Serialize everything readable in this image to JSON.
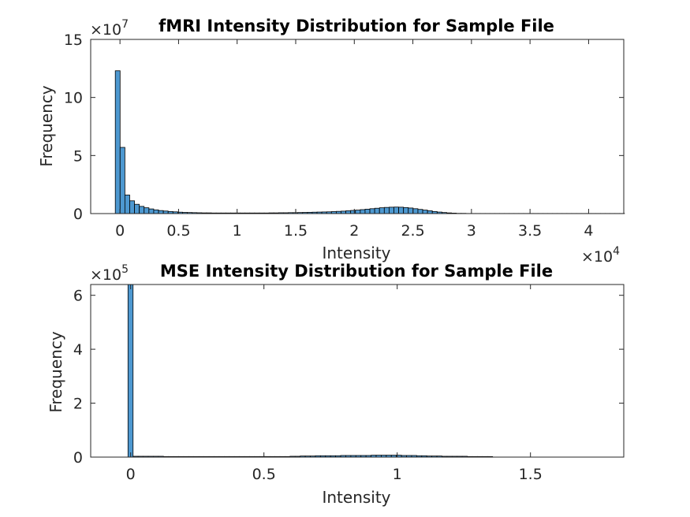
{
  "chart_data": [
    {
      "type": "bar",
      "title": "fMRI Intensity Distribution for Sample File",
      "xlabel": "Intensity",
      "ylabel": "Frequency",
      "y_exponent_base": "×10",
      "y_exponent_power": "7",
      "x_exponent_base": "",
      "x_exponent_power": "",
      "xlim": [
        -2500,
        43000
      ],
      "ylim": [
        0,
        15
      ],
      "xticks": [
        0,
        5000,
        10000,
        15000,
        20000,
        25000,
        30000,
        35000,
        40000
      ],
      "xtick_labels": [
        "0",
        "0.5",
        "1",
        "1.5",
        "2",
        "2.5",
        "3",
        "3.5",
        "4"
      ],
      "yticks": [
        0,
        5,
        10,
        15
      ],
      "ytick_labels": [
        "0",
        "5",
        "10",
        "15"
      ],
      "bin_start": -400,
      "bin_width": 410,
      "values": [
        12.3,
        5.7,
        1.6,
        1.1,
        0.8,
        0.62,
        0.5,
        0.4,
        0.32,
        0.26,
        0.22,
        0.18,
        0.15,
        0.12,
        0.1,
        0.09,
        0.08,
        0.07,
        0.06,
        0.06,
        0.05,
        0.05,
        0.05,
        0.05,
        0.05,
        0.05,
        0.05,
        0.05,
        0.05,
        0.05,
        0.05,
        0.05,
        0.06,
        0.06,
        0.07,
        0.07,
        0.08,
        0.08,
        0.09,
        0.1,
        0.11,
        0.12,
        0.13,
        0.14,
        0.15,
        0.17,
        0.19,
        0.21,
        0.24,
        0.27,
        0.3,
        0.34,
        0.38,
        0.42,
        0.46,
        0.5,
        0.53,
        0.55,
        0.56,
        0.55,
        0.52,
        0.48,
        0.42,
        0.36,
        0.3,
        0.24,
        0.18,
        0.13,
        0.09,
        0.06,
        0.04,
        0.02,
        0.02,
        0.01,
        0.01,
        0.01,
        0.01,
        0.01,
        0.01,
        0.01,
        0.01,
        0.01,
        0.01,
        0.01,
        0.01,
        0.01,
        0.01,
        0.01,
        0.01,
        0.01,
        0.01,
        0.01,
        0.01,
        0.01,
        0.01,
        0.01,
        0.01,
        0.01,
        0.01,
        0.01,
        0.01,
        0.01,
        0.01,
        0.01,
        0.01,
        0.01
      ]
    },
    {
      "type": "bar",
      "title": "MSE Intensity Distribution for Sample File",
      "xlabel": "Intensity",
      "ylabel": "Frequency",
      "y_exponent_base": "×10",
      "y_exponent_power": "5",
      "x_exponent_base": "×10",
      "x_exponent_power": "4",
      "xlim": [
        -1500,
        18500
      ],
      "ylim": [
        0,
        6.4
      ],
      "xticks": [
        0,
        5000,
        10000,
        15000
      ],
      "xtick_labels": [
        "0",
        "0.5",
        "1",
        "1.5"
      ],
      "yticks": [
        0,
        2,
        4,
        6
      ],
      "ytick_labels": [
        "0",
        "2",
        "4",
        "6"
      ],
      "bin_start": -100,
      "bin_width": 190,
      "values": [
        6.4,
        0.03,
        0.03,
        0.03,
        0.03,
        0.03,
        0.03,
        0.02,
        0.02,
        0.02,
        0.02,
        0.02,
        0.02,
        0.02,
        0.02,
        0.02,
        0.02,
        0.02,
        0.02,
        0.02,
        0.02,
        0.02,
        0.02,
        0.02,
        0.02,
        0.02,
        0.02,
        0.02,
        0.02,
        0.02,
        0.02,
        0.02,
        0.03,
        0.03,
        0.04,
        0.04,
        0.04,
        0.05,
        0.05,
        0.05,
        0.05,
        0.05,
        0.06,
        0.06,
        0.06,
        0.06,
        0.06,
        0.06,
        0.07,
        0.07,
        0.07,
        0.07,
        0.07,
        0.07,
        0.06,
        0.06,
        0.06,
        0.05,
        0.05,
        0.04,
        0.04,
        0.04,
        0.03,
        0.03,
        0.03,
        0.03,
        0.03,
        0.02,
        0.02,
        0.02,
        0.02,
        0.02
      ]
    }
  ]
}
